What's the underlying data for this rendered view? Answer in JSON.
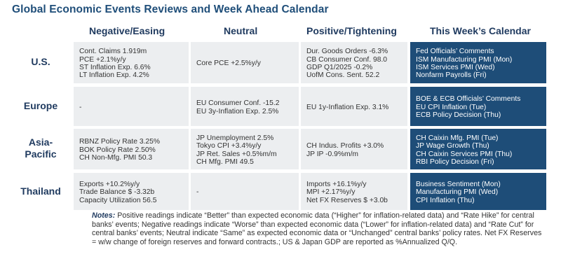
{
  "title": "Global Economic Events Reviews and Week Ahead Calendar",
  "columns": [
    "Negative/Easing",
    "Neutral",
    "Positive/Tightening",
    "This Week’s Calendar"
  ],
  "rows": [
    {
      "region": "U.S.",
      "negative": [
        "Cont. Claims 1.919m",
        "PCE +2.1%y/y",
        "ST Inflation Exp. 6.6%",
        "LT Inflation Exp. 4.2%"
      ],
      "neutral": [
        "Core PCE +2.5%y/y"
      ],
      "positive": [
        "Dur. Goods Orders -6.3%",
        "CB Consumer Conf. 98.0",
        "GDP Q1/2025 -0.2%",
        "UofM Cons. Sent. 52.2"
      ],
      "calendar": [
        "Fed Officials’ Comments",
        "ISM Manufacturing PMI (Mon)",
        "ISM Services PMI (Wed)",
        "Nonfarm Payrolls (Fri)"
      ]
    },
    {
      "region": "Europe",
      "negative": [
        "-"
      ],
      "neutral": [
        "EU Consumer Conf. -15.2",
        "EU 3y-Inflation Exp. 2.5%"
      ],
      "positive": [
        "EU 1y-Inflation Exp. 3.1%"
      ],
      "calendar": [
        "BOE & ECB Officials’ Comments",
        "EU CPI Inflation (Tue)",
        "ECB Policy Decision (Thu)"
      ]
    },
    {
      "region_lines": [
        "Asia-",
        "Pacific"
      ],
      "negative": [
        "RBNZ Policy Rate 3.25%",
        "BOK Policy Rate 2.50%",
        "CH Non-Mfg. PMI 50.3"
      ],
      "neutral": [
        "JP Unemployment 2.5%",
        "Tokyo CPI +3.4%y/y",
        "JP Ret. Sales +0.5%m/m",
        "CH Mfg. PMI 49.5"
      ],
      "positive": [
        "CH Indus. Profits +3.0%",
        "JP IP -0.9%m/m"
      ],
      "calendar": [
        "CH Caixin Mfg. PMI (Tue)",
        "JP Wage Growth (Thu)",
        "CH Caixin Services PMI (Thu)",
        "RBI Policy Decision (Fri)"
      ]
    },
    {
      "region": "Thailand",
      "negative": [
        "Exports +10.2%y/y",
        "Trade Balance $ -3.32b",
        "Capacity Utilization 56.5"
      ],
      "neutral": [
        "-"
      ],
      "positive": [
        "Imports +16.1%y/y",
        "MPI +2.17%y/y",
        "Net FX Reserves $ +3.0b"
      ],
      "calendar": [
        "Business Sentiment (Mon)",
        "Manufacturing PMI (Wed)",
        "CPI Inflation (Thu)"
      ]
    }
  ],
  "notes": {
    "label": "Notes:",
    "text": " Positive readings indicate “Better” than expected economic data (“Higher” for inflation-related data) and “Rate Hike” for central banks’ events; Negative readings indicate “Worse” than expected economic data (“Lower” for inflation-related data) and “Rate Cut” for central banks’ events; Neutral indicate “Same” as expected economic data or “Unchanged” central banks’ policy rates. Net FX Reserves = w/w change of foreign reserves and forward contracts.; US & Japan GDP are reported as %Annualized Q/Q."
  }
}
